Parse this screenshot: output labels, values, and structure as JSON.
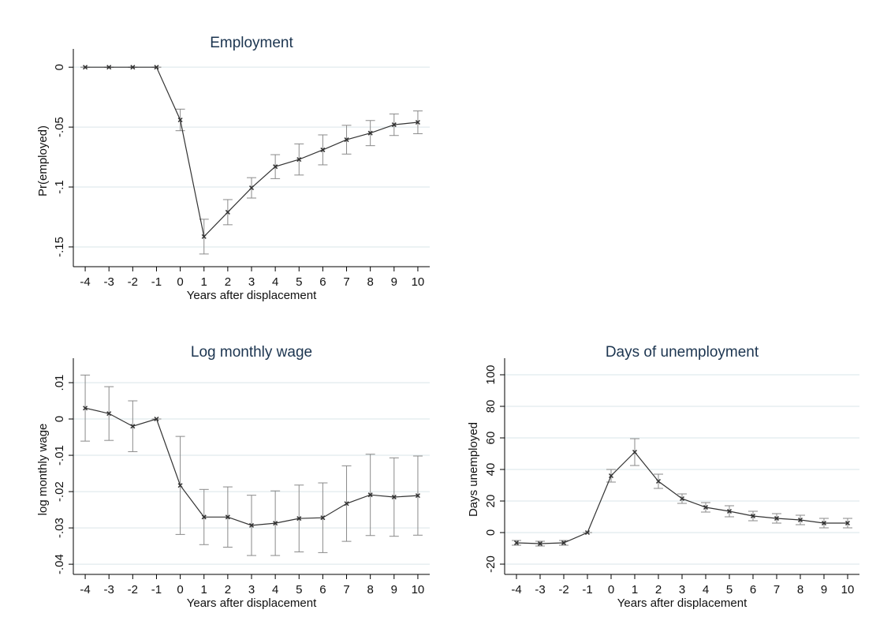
{
  "chart_data": [
    {
      "type": "line",
      "title": "Employment",
      "xlabel": "Years after displacement",
      "ylabel": "Pr(employed)",
      "x": [
        -4,
        -3,
        -2,
        -1,
        0,
        1,
        2,
        3,
        4,
        5,
        6,
        7,
        8,
        9,
        10
      ],
      "values": [
        0,
        0,
        0,
        0,
        -0.044,
        -0.1414,
        -0.121,
        -0.1007,
        -0.083,
        -0.077,
        -0.069,
        -0.0605,
        -0.055,
        -0.048,
        -0.046
      ],
      "errors": [
        0,
        0,
        0,
        0,
        0.009,
        0.0145,
        0.0105,
        0.0085,
        0.01,
        0.013,
        0.0125,
        0.012,
        0.0105,
        0.009,
        0.0095
      ],
      "color": "#333333",
      "error_color": "#8a8a8a",
      "xlim": [
        -4.5,
        10.5
      ],
      "xticks": [
        -4,
        -3,
        -2,
        -1,
        0,
        1,
        2,
        3,
        4,
        5,
        6,
        7,
        8,
        9,
        10
      ],
      "ylim": [
        -0.1665,
        0.01
      ],
      "yticks": [
        {
          "value": 0,
          "label": "0"
        },
        {
          "value": -0.05,
          "label": "-.05"
        },
        {
          "value": -0.1,
          "label": "-.1"
        },
        {
          "value": -0.15,
          "label": "-.15"
        }
      ],
      "grid": true
    },
    {
      "type": "line",
      "title": "Log monthly wage",
      "xlabel": "Years after displacement",
      "ylabel": "log monthly wage",
      "x": [
        -4,
        -3,
        -2,
        -1,
        0,
        1,
        2,
        3,
        4,
        5,
        6,
        7,
        8,
        9,
        10
      ],
      "values": [
        0.003,
        0.0015,
        -0.002,
        0,
        -0.0183,
        -0.027,
        -0.027,
        -0.0293,
        -0.0287,
        -0.0274,
        -0.0272,
        -0.0233,
        -0.0209,
        -0.0215,
        -0.0211
      ],
      "errors": [
        0.0091,
        0.0074,
        0.007,
        0,
        0.0135,
        0.0076,
        0.0083,
        0.0083,
        0.0089,
        0.0092,
        0.0096,
        0.0104,
        0.0112,
        0.0108,
        0.0109
      ],
      "color": "#333333",
      "error_color": "#8a8a8a",
      "xlim": [
        -4.5,
        10.5
      ],
      "xticks": [
        -4,
        -3,
        -2,
        -1,
        0,
        1,
        2,
        3,
        4,
        5,
        6,
        7,
        8,
        9,
        10
      ],
      "ylim": [
        -0.0428,
        0.015
      ],
      "yticks": [
        {
          "value": 0.01,
          "label": ".01"
        },
        {
          "value": 0,
          "label": "0"
        },
        {
          "value": -0.01,
          "label": "-.01"
        },
        {
          "value": -0.02,
          "label": "-.02"
        },
        {
          "value": -0.03,
          "label": "-.03"
        },
        {
          "value": -0.04,
          "label": "-.04"
        }
      ],
      "grid": true
    },
    {
      "type": "line",
      "title": "Days of unemployment",
      "xlabel": "Years after displacement",
      "ylabel": "Days unemployed",
      "x": [
        -4,
        -3,
        -2,
        -1,
        0,
        1,
        2,
        3,
        4,
        5,
        6,
        7,
        8,
        9,
        10
      ],
      "values": [
        -6.5,
        -7,
        -6.5,
        0,
        36,
        51,
        32.5,
        21.5,
        16,
        13.5,
        10.5,
        9,
        8,
        6,
        6
      ],
      "errors": [
        1.5,
        1.5,
        1.5,
        0,
        4,
        8.5,
        4.5,
        3,
        3,
        3.5,
        3,
        3,
        3,
        3,
        3
      ],
      "color": "#333333",
      "error_color": "#8a8a8a",
      "xlim": [
        -4.5,
        10.5
      ],
      "xticks": [
        -4,
        -3,
        -2,
        -1,
        0,
        1,
        2,
        3,
        4,
        5,
        6,
        7,
        8,
        9,
        10
      ],
      "ylim": [
        -26.5,
        106.5
      ],
      "yticks": [
        100,
        80,
        60,
        40,
        20,
        0,
        -20
      ],
      "grid": true
    }
  ]
}
